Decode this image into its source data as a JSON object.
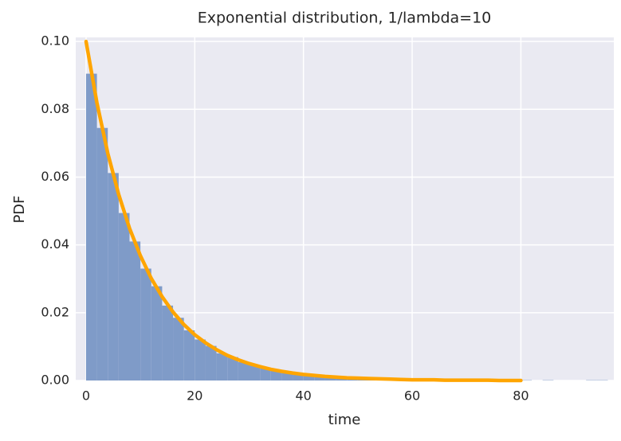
{
  "chart_data": {
    "type": "histogram",
    "title": "Exponential distribution, 1/lambda=10",
    "x_label": "time",
    "y_label": "PDF",
    "bins": [
      0,
      2,
      4,
      6,
      8,
      10,
      12,
      14,
      16,
      18,
      20,
      22,
      24,
      26,
      28,
      30,
      32,
      34,
      36,
      38,
      40,
      42,
      44,
      46,
      48,
      50,
      52,
      54,
      56,
      58,
      60,
      62,
      64,
      66,
      68,
      70,
      72,
      74,
      76,
      78,
      80,
      82,
      84,
      86,
      88,
      90,
      92,
      94,
      96
    ],
    "values": [
      0.0905,
      0.0745,
      0.0612,
      0.0494,
      0.041,
      0.033,
      0.0278,
      0.0221,
      0.0185,
      0.0148,
      0.0121,
      0.0102,
      0.008,
      0.0069,
      0.0054,
      0.0046,
      0.0036,
      0.0031,
      0.0024,
      0.002,
      0.0017,
      0.0013,
      0.0011,
      0.0009,
      0.0008,
      0.0006,
      0.0005,
      0.0004,
      0.0003,
      0.0003,
      0.0002,
      0.0002,
      0.0001,
      0.0002,
      0.0001,
      0.0001,
      0.0001,
      0.0,
      0.0001,
      0.0,
      0.0001,
      0.0,
      0.0001,
      0.0,
      0.0,
      0.0,
      0.0001,
      0.0001
    ],
    "color": "#7f9bc8",
    "line": {
      "type": "line",
      "color": "#ffa500",
      "x": [
        0,
        2,
        4,
        6,
        8,
        10,
        12,
        14,
        16,
        18,
        20,
        22,
        24,
        26,
        28,
        30,
        32,
        34,
        36,
        38,
        40,
        42,
        44,
        46,
        48,
        50,
        52,
        54,
        56,
        58,
        60,
        62,
        64,
        66,
        68,
        70,
        72,
        74,
        76,
        78,
        80
      ],
      "values": [
        0.1,
        0.0819,
        0.067,
        0.0549,
        0.0449,
        0.0368,
        0.0301,
        0.0247,
        0.0202,
        0.0165,
        0.0135,
        0.0111,
        0.0091,
        0.0074,
        0.0061,
        0.005,
        0.0041,
        0.0033,
        0.0027,
        0.0022,
        0.0018,
        0.0015,
        0.0012,
        0.001,
        0.0008,
        0.0007,
        0.0006,
        0.0005,
        0.0004,
        0.0003,
        0.0002,
        0.0002,
        0.0002,
        0.0001,
        0.0001,
        0.0001,
        0.0001,
        0.0001,
        0,
        0,
        0
      ]
    },
    "xlim": [
      -1.9,
      97.1
    ],
    "ylim": [
      0,
      0.1012
    ],
    "xticks": [
      0,
      20,
      40,
      60,
      80
    ],
    "yticks": [
      {
        "value": 0,
        "label": "0.00"
      },
      {
        "value": 0.02,
        "label": "0.02"
      },
      {
        "value": 0.04,
        "label": "0.04"
      },
      {
        "value": 0.06,
        "label": "0.06"
      },
      {
        "value": 0.08,
        "label": "0.08"
      },
      {
        "value": 0.1,
        "label": "0.10"
      }
    ],
    "grid": true
  }
}
